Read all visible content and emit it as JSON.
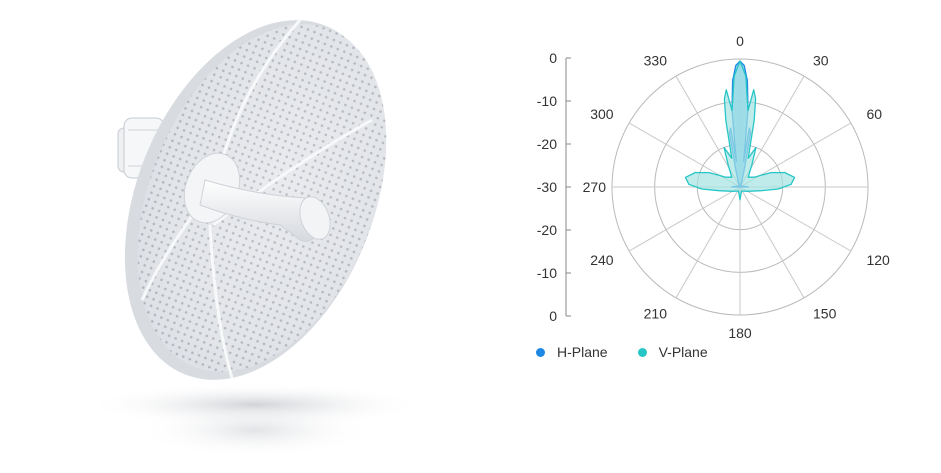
{
  "product": {
    "image_name": "dish-antenna-image"
  },
  "chart_data": {
    "type": "polar",
    "angle_labels": [
      "0",
      "30",
      "60",
      "120",
      "150",
      "180",
      "210",
      "240",
      "270",
      "300",
      "330"
    ],
    "radial_tick_labels": [
      "0",
      "-10",
      "-20",
      "-30",
      "-20",
      "-10",
      "0"
    ],
    "radial_range_db": [
      -30,
      0
    ],
    "grid": true,
    "legend_position": "bottom-left",
    "series": [
      {
        "name": "H-Plane",
        "color": "#1e88e5",
        "fill": "#7cc7f2",
        "points_angle_db": [
          [
            0,
            -0.5
          ],
          [
            2,
            -1.5
          ],
          [
            4,
            -5
          ],
          [
            6,
            -12
          ],
          [
            8,
            -24
          ],
          [
            9,
            -16
          ],
          [
            11,
            -17
          ],
          [
            14,
            -26
          ],
          [
            20,
            -29
          ],
          [
            30,
            -30
          ],
          [
            60,
            -29.5
          ],
          [
            90,
            -28
          ],
          [
            120,
            -30
          ],
          [
            180,
            -30
          ],
          [
            240,
            -30
          ],
          [
            270,
            -28
          ],
          [
            300,
            -29.5
          ],
          [
            330,
            -30
          ],
          [
            340,
            -29
          ],
          [
            346,
            -26
          ],
          [
            349,
            -17
          ],
          [
            351,
            -16
          ],
          [
            352,
            -24
          ],
          [
            354,
            -12
          ],
          [
            356,
            -5
          ],
          [
            358,
            -1.5
          ]
        ]
      },
      {
        "name": "V-Plane",
        "color": "#26c6c6",
        "fill": "#a4e3e3",
        "points_angle_db": [
          [
            0,
            -0.5
          ],
          [
            3,
            -4
          ],
          [
            6,
            -12
          ],
          [
            8,
            -7
          ],
          [
            10,
            -9
          ],
          [
            12,
            -14
          ],
          [
            16,
            -23
          ],
          [
            22,
            -20
          ],
          [
            28,
            -24
          ],
          [
            40,
            -27
          ],
          [
            55,
            -26
          ],
          [
            65,
            -22
          ],
          [
            72,
            -19
          ],
          [
            80,
            -17
          ],
          [
            87,
            -18
          ],
          [
            93,
            -21
          ],
          [
            100,
            -25
          ],
          [
            120,
            -28
          ],
          [
            160,
            -29
          ],
          [
            180,
            -27
          ],
          [
            200,
            -29
          ],
          [
            240,
            -28
          ],
          [
            260,
            -25
          ],
          [
            267,
            -21
          ],
          [
            273,
            -18
          ],
          [
            280,
            -17
          ],
          [
            288,
            -19
          ],
          [
            295,
            -22
          ],
          [
            305,
            -26
          ],
          [
            320,
            -27
          ],
          [
            332,
            -24
          ],
          [
            338,
            -20
          ],
          [
            344,
            -23
          ],
          [
            348,
            -14
          ],
          [
            350,
            -9
          ],
          [
            352,
            -7
          ],
          [
            354,
            -12
          ],
          [
            357,
            -4
          ]
        ]
      }
    ]
  }
}
